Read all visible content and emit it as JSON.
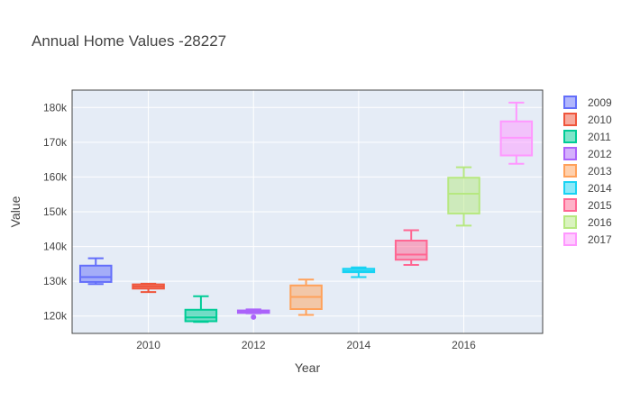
{
  "chart_data": {
    "type": "box",
    "title": "Annual Home Values -28227",
    "xlabel": "Year",
    "ylabel": "Value",
    "ylim": [
      115000,
      185000
    ],
    "xlim": [
      2008.55,
      2017.5
    ],
    "y_ticks": [
      120000,
      130000,
      140000,
      150000,
      160000,
      170000,
      180000
    ],
    "y_tick_labels": [
      "120k",
      "130k",
      "140k",
      "150k",
      "160k",
      "170k",
      "180k"
    ],
    "x_ticks": [
      2010,
      2012,
      2014,
      2016
    ],
    "x_tick_labels": [
      "2010",
      "2012",
      "2014",
      "2016"
    ],
    "grid": true,
    "legend_position": "right",
    "plot_background": "#e5ecf6",
    "series": [
      {
        "name": "2009",
        "x": 2009,
        "color": "#636efa",
        "min": 129200,
        "q1": 129800,
        "median": 131200,
        "q3": 134500,
        "max": 136600,
        "outliers": []
      },
      {
        "name": "2010",
        "x": 2010,
        "color": "#ef553b",
        "min": 126900,
        "q1": 127900,
        "median": 128500,
        "q3": 129100,
        "max": 129300,
        "outliers": []
      },
      {
        "name": "2011",
        "x": 2011,
        "color": "#00cc96",
        "min": 118300,
        "q1": 118500,
        "median": 119600,
        "q3": 121800,
        "max": 125700,
        "outliers": []
      },
      {
        "name": "2012",
        "x": 2012,
        "color": "#ab63fa",
        "min": 120800,
        "q1": 120900,
        "median": 121200,
        "q3": 121600,
        "max": 121900,
        "outliers": [
          119700
        ]
      },
      {
        "name": "2013",
        "x": 2013,
        "color": "#ffa15a",
        "min": 120300,
        "q1": 122000,
        "median": 125500,
        "q3": 128800,
        "max": 130500,
        "outliers": []
      },
      {
        "name": "2014",
        "x": 2014,
        "color": "#19d3f3",
        "min": 131200,
        "q1": 132600,
        "median": 133000,
        "q3": 133600,
        "max": 134000,
        "outliers": []
      },
      {
        "name": "2015",
        "x": 2015,
        "color": "#ff6692",
        "min": 134700,
        "q1": 136200,
        "median": 137700,
        "q3": 141700,
        "max": 144700,
        "outliers": []
      },
      {
        "name": "2016",
        "x": 2016,
        "color": "#b6e880",
        "min": 146000,
        "q1": 149500,
        "median": 155200,
        "q3": 159800,
        "max": 162800,
        "outliers": []
      },
      {
        "name": "2017",
        "x": 2017,
        "color": "#ff97ff",
        "min": 163800,
        "q1": 166200,
        "median": 171300,
        "q3": 176000,
        "max": 181400,
        "outliers": []
      }
    ]
  }
}
